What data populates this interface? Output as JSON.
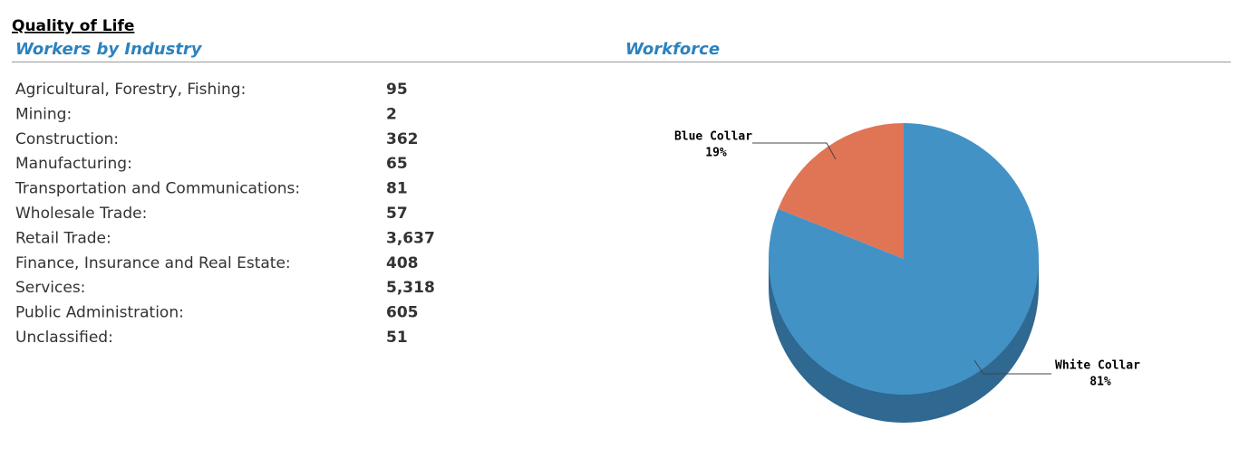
{
  "header": {
    "title": "Quality of Life",
    "left_heading": "Workers by Industry",
    "right_heading": "Workforce"
  },
  "table": {
    "rows": [
      [
        "Agricultural, Forestry, Fishing:",
        "95"
      ],
      [
        "Mining:",
        "2"
      ],
      [
        "Construction:",
        "362"
      ],
      [
        "Manufacturing:",
        "65"
      ],
      [
        "Transportation and Communications:",
        "81"
      ],
      [
        "Wholesale Trade:",
        "57"
      ],
      [
        "Retail Trade:",
        "3,637"
      ],
      [
        "Finance, Insurance and Real Estate:",
        "408"
      ],
      [
        "Services:",
        "5,318"
      ],
      [
        "Public Administration:",
        "605"
      ],
      [
        "Unclassified:",
        "51"
      ]
    ]
  },
  "chart_data": {
    "type": "pie",
    "categories": [
      "Blue Collar",
      "White Collar"
    ],
    "values": [
      19,
      81
    ],
    "value_labels": [
      "19%",
      "81%"
    ],
    "colors": [
      "#e07555",
      "#4292c6"
    ],
    "side_color": "#2f6890"
  }
}
